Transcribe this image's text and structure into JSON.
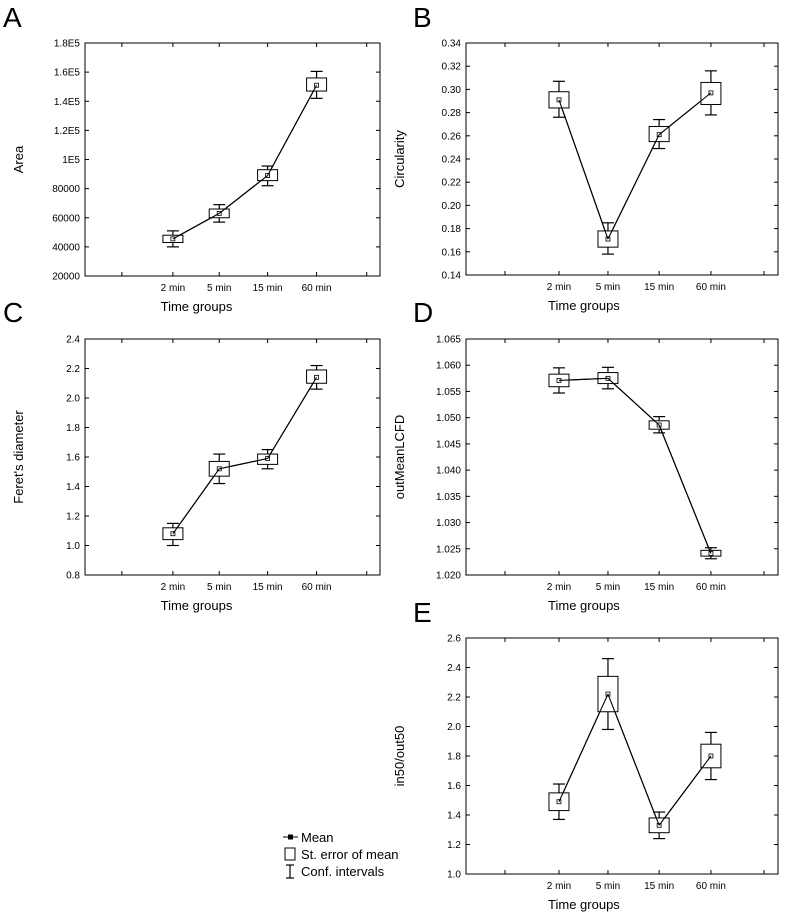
{
  "legend": {
    "items": [
      {
        "label": "Mean",
        "icon": "mean-marker-icon"
      },
      {
        "label": "St. error of mean",
        "icon": "standard-error-box-icon"
      },
      {
        "label": "Conf. intervals",
        "icon": "confidence-whisker-icon"
      }
    ]
  },
  "chart_data": [
    {
      "panel": "A",
      "type": "line",
      "xlabel": "Time groups",
      "ylabel": "Area",
      "categories": [
        "2 min",
        "5 min",
        "15 min",
        "60 min"
      ],
      "ylim": [
        20000,
        180000
      ],
      "yticks": [
        20000,
        40000,
        60000,
        80000,
        100000,
        120000,
        140000,
        160000,
        180000
      ],
      "yticklabels": [
        "20000",
        "40000",
        "60000",
        "80000",
        "1E5",
        "1.2E5",
        "1.4E5",
        "1.6E5",
        "1.8E5"
      ],
      "grid": false,
      "series": [
        {
          "mean": [
            45500,
            63000,
            89000,
            151000
          ],
          "se_low": [
            43000,
            60000,
            85500,
            147000
          ],
          "se_high": [
            48000,
            66000,
            93000,
            156000
          ],
          "ci_low": [
            40000,
            57000,
            82000,
            142000
          ],
          "ci_high": [
            51000,
            69000,
            95500,
            160500
          ]
        }
      ]
    },
    {
      "panel": "B",
      "type": "line",
      "xlabel": "Time groups",
      "ylabel": "Circularity",
      "categories": [
        "2 min",
        "5 min",
        "15 min",
        "60 min"
      ],
      "ylim": [
        0.14,
        0.34
      ],
      "yticks": [
        0.14,
        0.16,
        0.18,
        0.2,
        0.22,
        0.24,
        0.26,
        0.28,
        0.3,
        0.32,
        0.34
      ],
      "yticklabels": [
        "0.14",
        "0.16",
        "0.18",
        "0.20",
        "0.22",
        "0.24",
        "0.26",
        "0.28",
        "0.30",
        "0.32",
        "0.34"
      ],
      "grid": false,
      "series": [
        {
          "mean": [
            0.291,
            0.171,
            0.261,
            0.297
          ],
          "se_low": [
            0.284,
            0.164,
            0.255,
            0.287
          ],
          "se_high": [
            0.298,
            0.178,
            0.268,
            0.306
          ],
          "ci_low": [
            0.276,
            0.158,
            0.249,
            0.278
          ],
          "ci_high": [
            0.307,
            0.185,
            0.274,
            0.316
          ]
        }
      ]
    },
    {
      "panel": "C",
      "type": "line",
      "xlabel": "Time groups",
      "ylabel": "Feret's diameter",
      "categories": [
        "2 min",
        "5 min",
        "15 min",
        "60 min"
      ],
      "ylim": [
        0.8,
        2.4
      ],
      "yticks": [
        0.8,
        1.0,
        1.2,
        1.4,
        1.6,
        1.8,
        2.0,
        2.2,
        2.4
      ],
      "yticklabels": [
        "0.8",
        "1.0",
        "1.2",
        "1.4",
        "1.6",
        "1.8",
        "2.0",
        "2.2",
        "2.4"
      ],
      "grid": false,
      "series": [
        {
          "mean": [
            1.08,
            1.52,
            1.59,
            2.14
          ],
          "se_low": [
            1.04,
            1.47,
            1.55,
            2.1
          ],
          "se_high": [
            1.12,
            1.57,
            1.62,
            2.19
          ],
          "ci_low": [
            1.0,
            1.42,
            1.52,
            2.06
          ],
          "ci_high": [
            1.15,
            1.62,
            1.65,
            2.22
          ]
        }
      ]
    },
    {
      "panel": "D",
      "type": "line",
      "xlabel": "Time groups",
      "ylabel": "outMeanLCFD",
      "categories": [
        "2 min",
        "5 min",
        "15 min",
        "60 min"
      ],
      "ylim": [
        1.02,
        1.065
      ],
      "yticks": [
        1.02,
        1.025,
        1.03,
        1.035,
        1.04,
        1.045,
        1.05,
        1.055,
        1.06,
        1.065
      ],
      "yticklabels": [
        "1.020",
        "1.025",
        "1.030",
        "1.035",
        "1.040",
        "1.045",
        "1.050",
        "1.055",
        "1.060",
        "1.065"
      ],
      "grid": false,
      "series": [
        {
          "mean": [
            1.0571,
            1.0575,
            1.0486,
            1.0241
          ],
          "se_low": [
            1.0559,
            1.0565,
            1.0478,
            1.0236
          ],
          "se_high": [
            1.0583,
            1.0586,
            1.0494,
            1.0247
          ],
          "ci_low": [
            1.0547,
            1.0555,
            1.0471,
            1.0231
          ],
          "ci_high": [
            1.0595,
            1.0596,
            1.0502,
            1.0252
          ]
        }
      ]
    },
    {
      "panel": "E",
      "type": "line",
      "xlabel": "Time groups",
      "ylabel": "in50/out50",
      "categories": [
        "2 min",
        "5 min",
        "15 min",
        "60 min"
      ],
      "ylim": [
        1.0,
        2.6
      ],
      "yticks": [
        1.0,
        1.2,
        1.4,
        1.6,
        1.8,
        2.0,
        2.2,
        2.4,
        2.6
      ],
      "yticklabels": [
        "1.0",
        "1.2",
        "1.4",
        "1.6",
        "1.8",
        "2.0",
        "2.2",
        "2.4",
        "2.6"
      ],
      "grid": false,
      "series": [
        {
          "mean": [
            1.49,
            2.22,
            1.33,
            1.8
          ],
          "se_low": [
            1.43,
            2.1,
            1.28,
            1.72
          ],
          "se_high": [
            1.55,
            2.34,
            1.38,
            1.88
          ],
          "ci_low": [
            1.37,
            1.98,
            1.24,
            1.64
          ],
          "ci_high": [
            1.61,
            2.46,
            1.42,
            1.96
          ]
        }
      ]
    }
  ]
}
